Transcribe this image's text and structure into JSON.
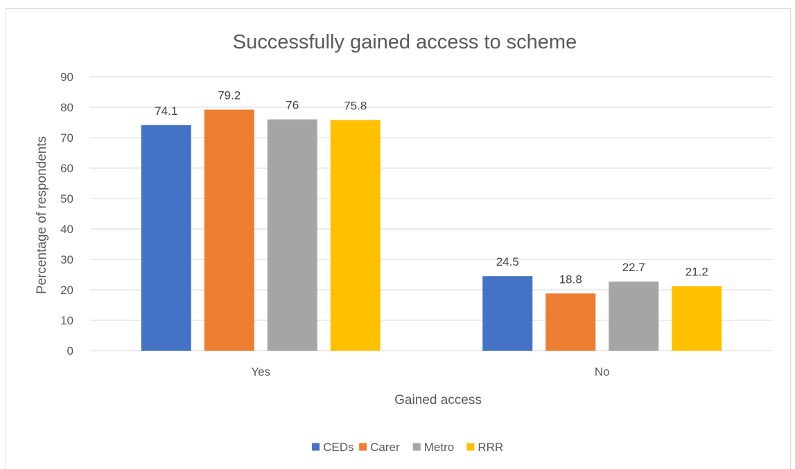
{
  "chart_data": {
    "type": "bar",
    "title": "Successfully gained access to scheme",
    "xlabel": "Gained access",
    "ylabel": "Percentage of respondents",
    "categories": [
      "Yes",
      "No"
    ],
    "ylim": [
      0,
      90
    ],
    "yticks": [
      0,
      10,
      20,
      30,
      40,
      50,
      60,
      70,
      80,
      90
    ],
    "grid": true,
    "legend_position": "bottom",
    "series": [
      {
        "name": "CEDs",
        "color": "#4472C4",
        "values": [
          74.1,
          24.5
        ]
      },
      {
        "name": "Carer",
        "color": "#ED7D31",
        "values": [
          79.2,
          18.8
        ]
      },
      {
        "name": "Metro",
        "color": "#A5A5A5",
        "values": [
          76,
          22.7
        ]
      },
      {
        "name": "RRR",
        "color": "#FFC000",
        "values": [
          75.8,
          21.2
        ]
      }
    ]
  }
}
